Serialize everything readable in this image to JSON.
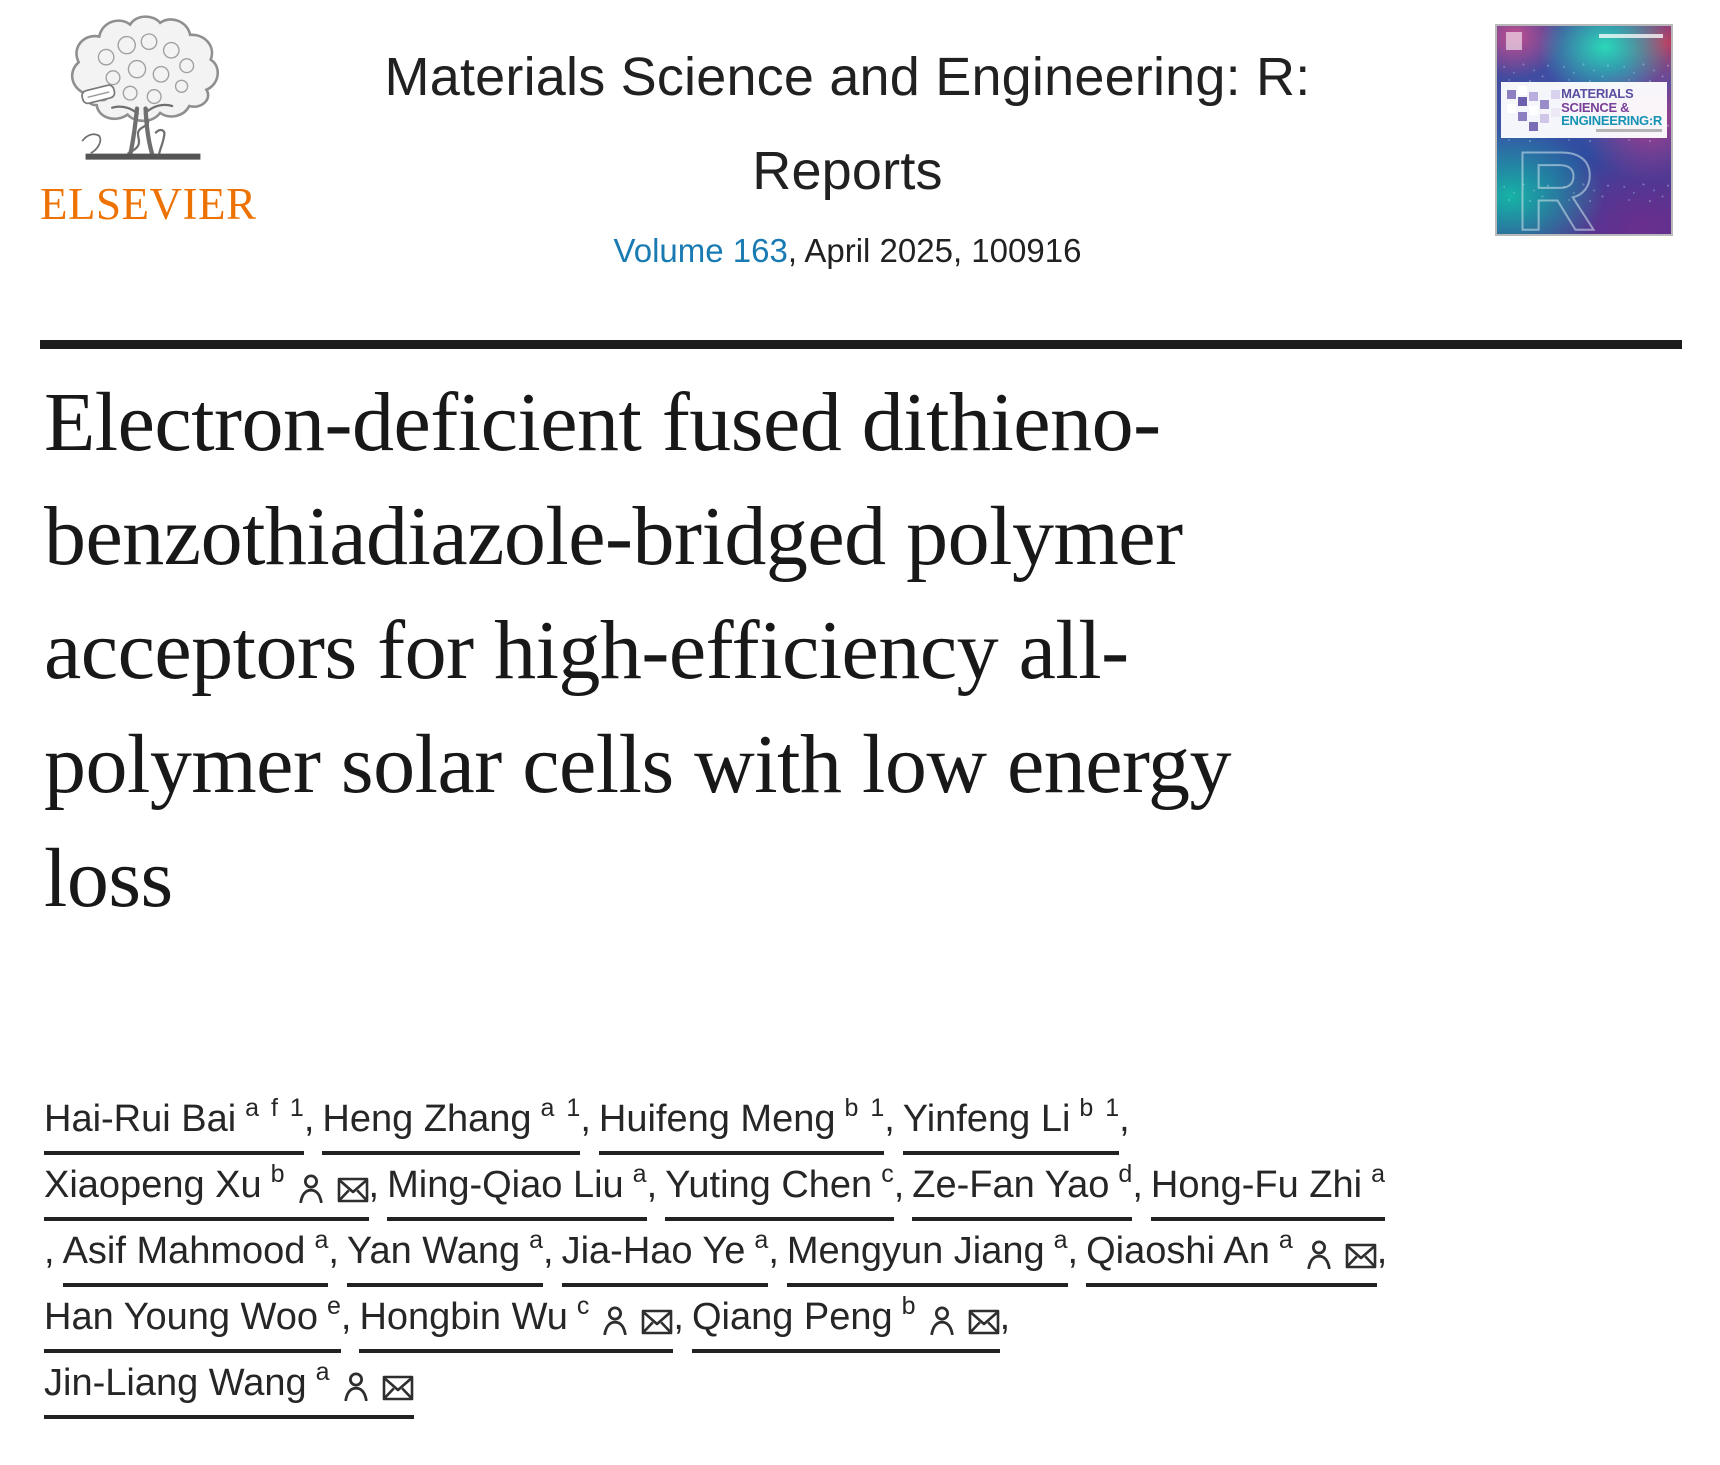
{
  "colors": {
    "link_blue": "#1a7bb3",
    "elsevier_orange": "#EE7203",
    "divider": "#1c1c1c",
    "title_text": "#181818"
  },
  "header": {
    "publisher_wordmark": "ELSEVIER",
    "journal_title_line1": "Materials Science and Engineering: R:",
    "journal_title_line2": "Reports",
    "volume_link": "Volume 163",
    "volume_rest": ", April 2025, 100916",
    "cover": {
      "masthead_line1": "MATERIALS",
      "masthead_line2": "SCIENCE &",
      "masthead_line3": "ENGINEERING:R",
      "watermark_letter": "R"
    }
  },
  "article": {
    "title_full": "Electron-deficient fused dithieno-benzothiadiazole-bridged polymer acceptors for high-efficiency all-polymer solar cells with low energy loss",
    "title_lines": [
      "Electron-deficient fused dithieno-",
      "benzothiadiazole-bridged polymer",
      "acceptors for high-efficiency all-",
      "polymer solar cells with low energy",
      "loss"
    ]
  },
  "authors": {
    "lines": [
      [
        {
          "t": "author",
          "name": "Hai-Rui Bai",
          "sup": "a f 1"
        },
        {
          "t": "text",
          "v": ", "
        },
        {
          "t": "author",
          "name": "Heng Zhang",
          "sup": "a 1"
        },
        {
          "t": "text",
          "v": ", "
        },
        {
          "t": "author",
          "name": "Huifeng Meng",
          "sup": "b 1"
        },
        {
          "t": "text",
          "v": ", "
        },
        {
          "t": "author",
          "name": "Yinfeng Li",
          "sup": "b 1"
        },
        {
          "t": "text",
          "v": ","
        }
      ],
      [
        {
          "t": "author",
          "name": "Xiaopeng Xu",
          "sup": "b",
          "icons": [
            "person",
            "envelope"
          ]
        },
        {
          "t": "text",
          "v": ", "
        },
        {
          "t": "author",
          "name": "Ming-Qiao Liu",
          "sup": "a"
        },
        {
          "t": "text",
          "v": ", "
        },
        {
          "t": "author",
          "name": "Yuting Chen",
          "sup": "c"
        },
        {
          "t": "text",
          "v": ", "
        },
        {
          "t": "author",
          "name": "Ze-Fan Yao",
          "sup": "d"
        },
        {
          "t": "text",
          "v": ", "
        },
        {
          "t": "author",
          "name": "Hong-Fu Zhi",
          "sup": "a"
        }
      ],
      [
        {
          "t": "text",
          "v": ", "
        },
        {
          "t": "author",
          "name": "Asif Mahmood",
          "sup": "a"
        },
        {
          "t": "text",
          "v": ", "
        },
        {
          "t": "author",
          "name": "Yan Wang",
          "sup": "a"
        },
        {
          "t": "text",
          "v": ", "
        },
        {
          "t": "author",
          "name": "Jia-Hao Ye",
          "sup": "a"
        },
        {
          "t": "text",
          "v": ", "
        },
        {
          "t": "author",
          "name": "Mengyun Jiang",
          "sup": "a"
        },
        {
          "t": "text",
          "v": ", "
        },
        {
          "t": "author",
          "name": "Qiaoshi An",
          "sup": "a",
          "icons": [
            "person",
            "envelope"
          ]
        },
        {
          "t": "text",
          "v": ","
        }
      ],
      [
        {
          "t": "author",
          "name": "Han Young Woo",
          "sup": "e"
        },
        {
          "t": "text",
          "v": ", "
        },
        {
          "t": "author",
          "name": "Hongbin Wu",
          "sup": "c",
          "icons": [
            "person",
            "envelope"
          ]
        },
        {
          "t": "text",
          "v": ", "
        },
        {
          "t": "author",
          "name": "Qiang Peng",
          "sup": "b",
          "icons": [
            "person",
            "envelope"
          ]
        },
        {
          "t": "text",
          "v": ","
        }
      ],
      [
        {
          "t": "author",
          "name": "Jin-Liang Wang",
          "sup": "a",
          "icons": [
            "person",
            "envelope"
          ]
        }
      ]
    ]
  }
}
